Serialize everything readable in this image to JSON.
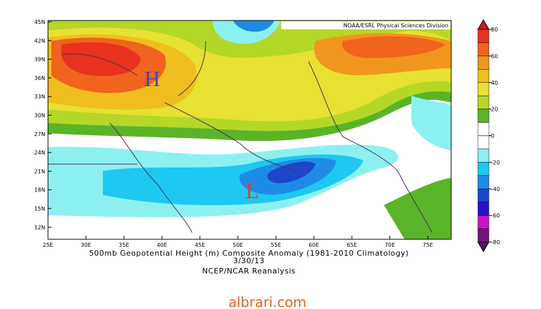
{
  "map": {
    "credit": "NOAA/ESRL Physical Sciences Division",
    "lat_labels": [
      "45N",
      "42N",
      "39N",
      "36N",
      "33N",
      "30N",
      "27N",
      "24N",
      "21N",
      "18N",
      "15N",
      "12N"
    ],
    "lon_labels": [
      "25E",
      "30E",
      "35E",
      "40E",
      "45E",
      "50E",
      "55E",
      "60E",
      "65E",
      "70E",
      "75E"
    ],
    "high_label": "H",
    "low_label": "L"
  },
  "colorbar": {
    "ticks": [
      80,
      60,
      40,
      20,
      0,
      -20,
      -40,
      -60,
      -80
    ],
    "top_color": "#c81e1e",
    "bottom_color": "#501464",
    "colors": [
      "#e8321e",
      "#f0641e",
      "#f0961e",
      "#f0be1e",
      "#e6e132",
      "#b4d728",
      "#5ab428",
      "#ffffff",
      "#ffffff",
      "#8cf0f0",
      "#1ec8f0",
      "#1e8ce6",
      "#1e46c8",
      "#2814c8",
      "#c814c8",
      "#781478"
    ]
  },
  "caption": {
    "line1": "500mb Geopotential Height (m) Composite Anomaly (1981-2010 Climatology)",
    "line2": "3/30/13",
    "line3": "NCEP/NCAR Reanalysis"
  },
  "watermark": "albrari.com"
}
